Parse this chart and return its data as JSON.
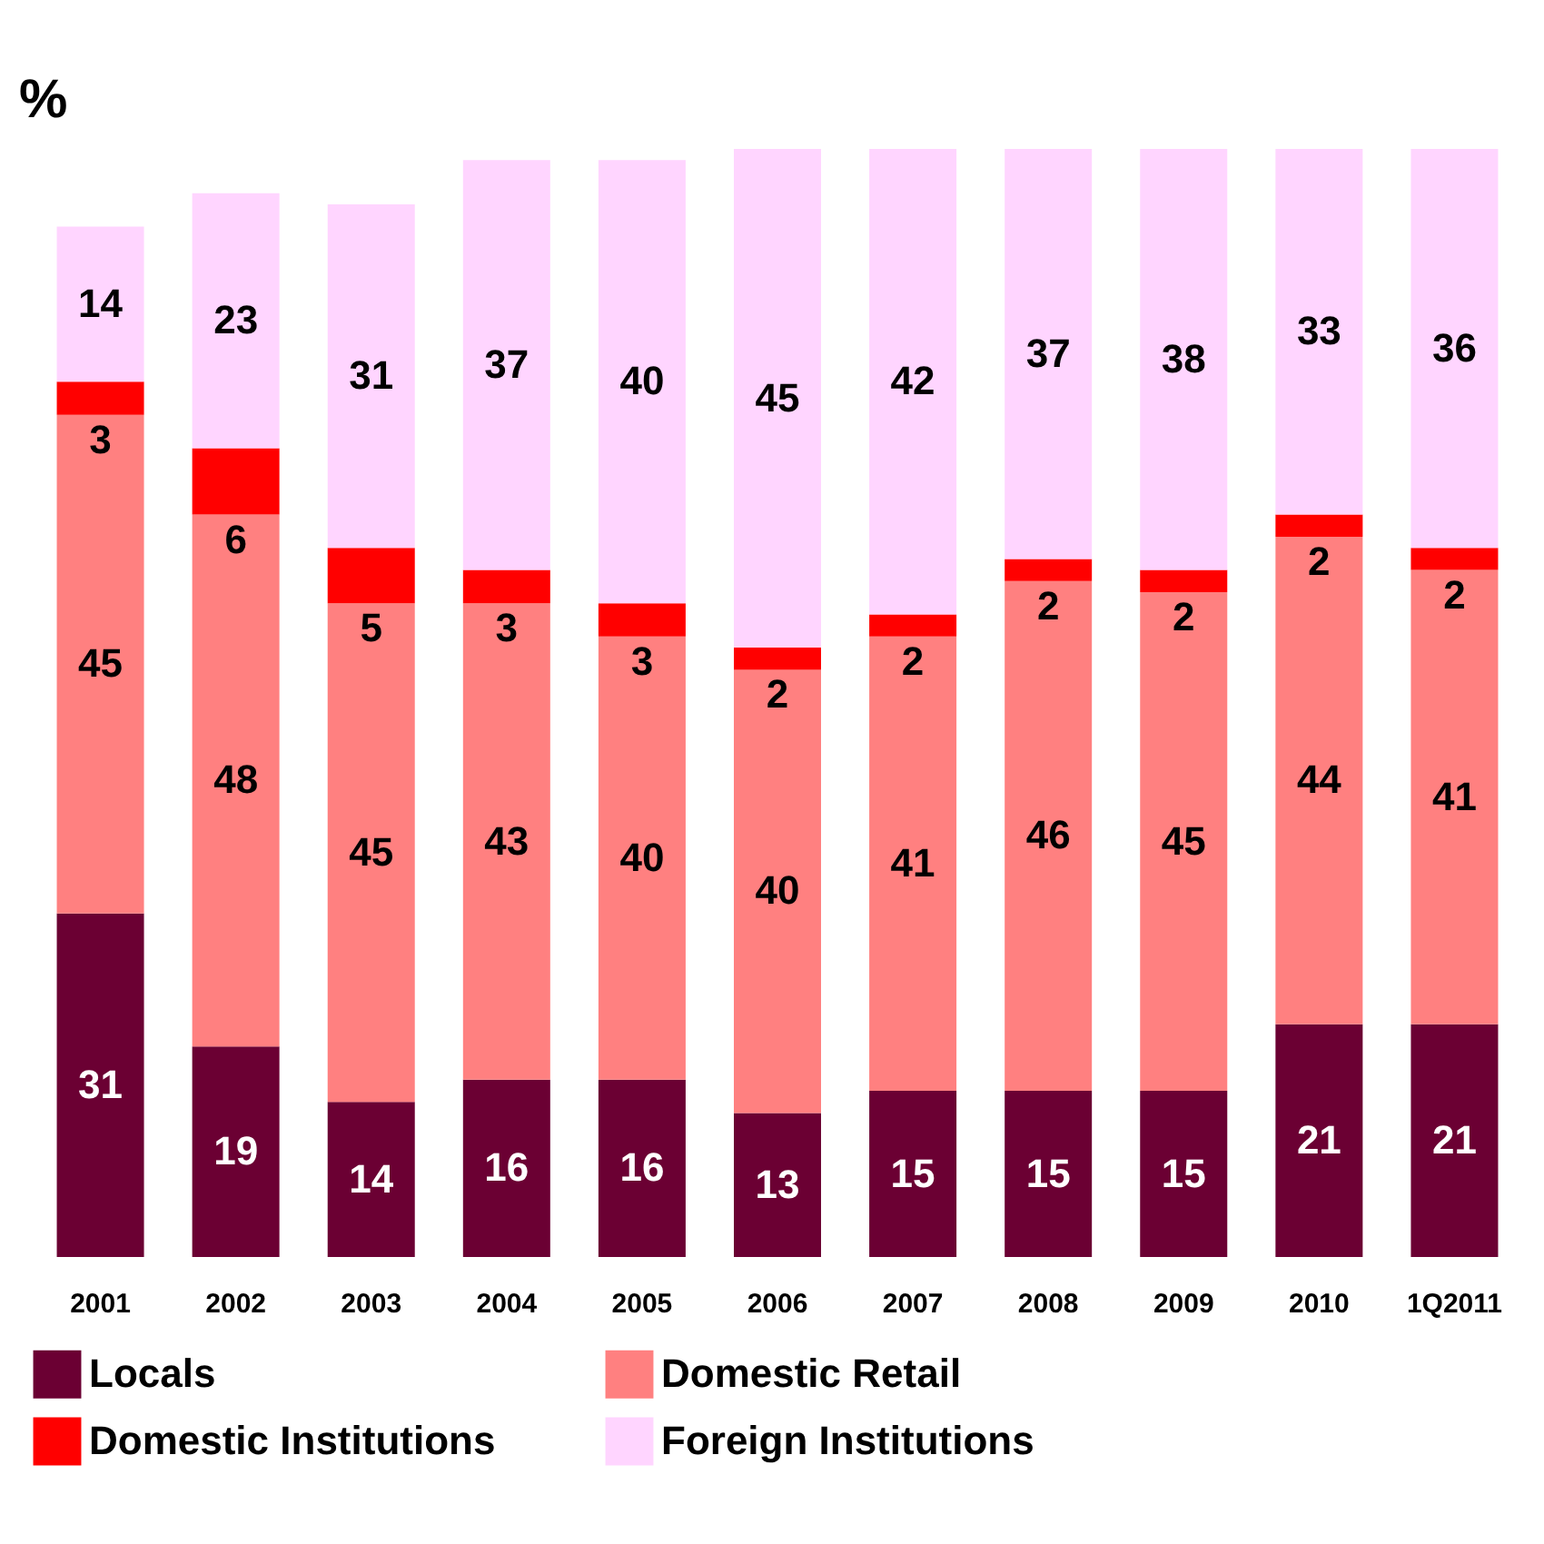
{
  "chart_data": {
    "type": "bar",
    "stacked": true,
    "ylabel": "%",
    "ylim": [
      0,
      100
    ],
    "tick_labels": "x",
    "data_labels": true,
    "legend": "bottom",
    "grid": false,
    "categories": [
      "2001",
      "2002",
      "2003",
      "2004",
      "2005",
      "2006",
      "2007",
      "2008",
      "2009",
      "2010",
      "1Q2011"
    ],
    "series": [
      {
        "name": "Locals",
        "color": "#6b0033",
        "values": [
          31,
          19,
          14,
          16,
          16,
          13,
          15,
          15,
          15,
          21,
          21
        ]
      },
      {
        "name": "Domestic Retail",
        "color": "#ff8080",
        "values": [
          45,
          48,
          45,
          43,
          40,
          40,
          41,
          46,
          45,
          44,
          41
        ]
      },
      {
        "name": "Domestic Institutions",
        "color": "#ff0000",
        "values": [
          3,
          6,
          5,
          3,
          3,
          2,
          2,
          2,
          2,
          2,
          2
        ]
      },
      {
        "name": "Foreign Institutions",
        "color": "#ffd5ff",
        "values": [
          14,
          23,
          31,
          37,
          40,
          45,
          42,
          37,
          38,
          33,
          36
        ]
      }
    ]
  }
}
